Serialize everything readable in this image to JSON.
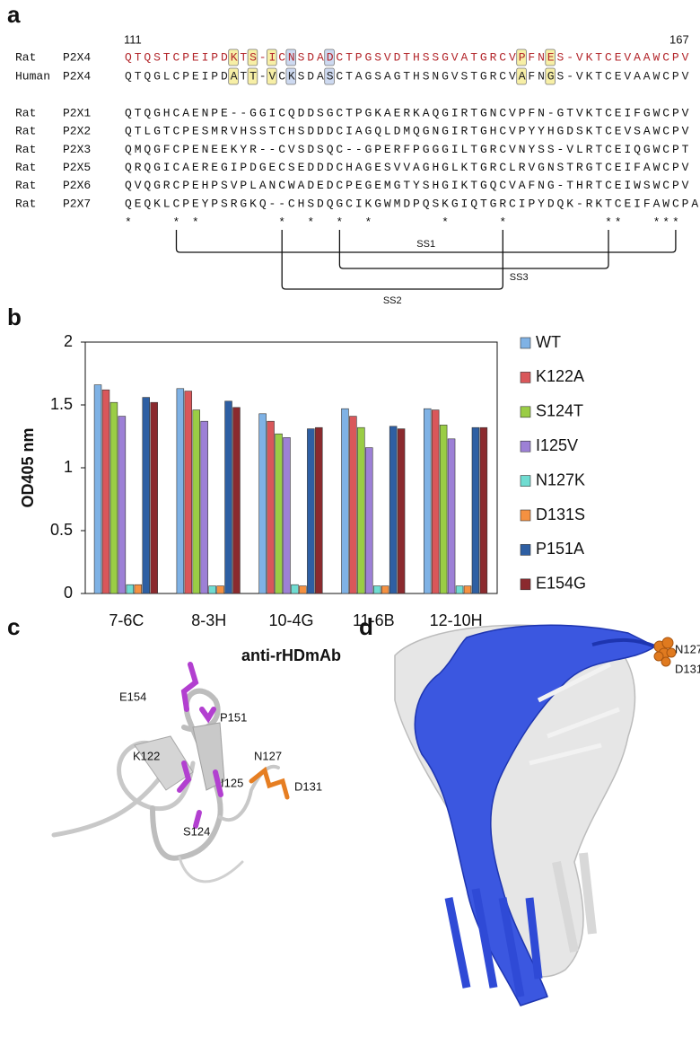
{
  "panel_labels": [
    "a",
    "b",
    "c",
    "d"
  ],
  "alignment": {
    "start": 111,
    "end": 167,
    "rows": [
      {
        "species": "Rat",
        "protein": "P2X4",
        "color": "#b3262b",
        "segments": [
          {
            "text": "QTQSTCPEIPD"
          },
          {
            "text": "K",
            "box": "#f7efa6"
          },
          {
            "text": "T"
          },
          {
            "text": "S",
            "box": "#f7efa6"
          },
          {
            "text": "-"
          },
          {
            "text": "I",
            "box": "#f7efa6"
          },
          {
            "text": "C"
          },
          {
            "text": "N",
            "box": "#cdd9f0"
          },
          {
            "text": "SDA"
          },
          {
            "text": "D",
            "box": "#cdd9f0"
          },
          {
            "text": "CTPGSVDTHSSGVATGRCV"
          },
          {
            "text": "P",
            "box": "#f7efa6"
          },
          {
            "text": "FN"
          },
          {
            "text": "E",
            "box": "#f7efa6"
          },
          {
            "text": "S-VKTCEVAAWCPV"
          }
        ]
      },
      {
        "species": "Human",
        "protein": "P2X4",
        "color": "#222222",
        "segments": [
          {
            "text": "QTQGLCPEIPD"
          },
          {
            "text": "A",
            "box": "#f7efa6"
          },
          {
            "text": "T"
          },
          {
            "text": "T",
            "box": "#f7efa6"
          },
          {
            "text": "-"
          },
          {
            "text": "V",
            "box": "#f7efa6"
          },
          {
            "text": "C"
          },
          {
            "text": "K",
            "box": "#cdd9f0"
          },
          {
            "text": "SDA"
          },
          {
            "text": "S",
            "box": "#cdd9f0"
          },
          {
            "text": "CTAGSAGTHSNGVSTGRCV"
          },
          {
            "text": "A",
            "box": "#f7efa6"
          },
          {
            "text": "FN"
          },
          {
            "text": "G",
            "box": "#f7efa6"
          },
          {
            "text": "S-VKTCEVAAWCPV"
          }
        ]
      }
    ],
    "others": [
      {
        "species": "Rat",
        "protein": "P2X1",
        "sequence": "QTQGHCAENPE--GGICQDDSGCTPGKAERKAQGIRTGNCVPFN-GTVKTCEIFGWCPV"
      },
      {
        "species": "Rat",
        "protein": "P2X2",
        "sequence": "QTLGTCPESMRVHSSTCHSDDDCIAGQLDMQGNGIRTGHCVPYYHGDSKTCEVSAWCPV"
      },
      {
        "species": "Rat",
        "protein": "P2X3",
        "sequence": "QMQGFCPENEEKYR--CVSDSQC--GPERFPGGGILTGRCVNYSS-VLRTCEIQGWCPT"
      },
      {
        "species": "Rat",
        "protein": "P2X5",
        "sequence": "QRQGICAEREGIPDGECSEDDDCHAGESVVAGHGLKTGRCLRVGNSTRGTCEIFAWCPV"
      },
      {
        "species": "Rat",
        "protein": "P2X6",
        "sequence": "QVQGRCPEHPSVPLANCWADEDCPEGEMGTYSHGIKTGQCVAFNG-THRTCEIWSWCPV"
      },
      {
        "species": "Rat",
        "protein": "P2X7",
        "sequence": "QEQKLCPEYPSRGKQ--CHSDQGCIKGWMDPQSKGIQTGRCIPYDQK-RKTCEIFAWCPA"
      }
    ],
    "conservation": "*    * *        *  *  *  *       *     *          **   ***",
    "bonds": [
      "SS1",
      "SS3",
      "SS2"
    ]
  },
  "chart_data": {
    "type": "bar",
    "y_label": "OD405 nm",
    "x_label": "anti-rHDmAb",
    "categories": [
      "7-6C",
      "8-3H",
      "10-4G",
      "11-6B",
      "12-10H"
    ],
    "series": [
      {
        "name": "WT",
        "color": "#7fb2e5",
        "values": [
          1.66,
          1.63,
          1.43,
          1.47,
          1.47
        ]
      },
      {
        "name": "K122A",
        "color": "#d9575a",
        "values": [
          1.62,
          1.61,
          1.37,
          1.41,
          1.46
        ]
      },
      {
        "name": "S124T",
        "color": "#9acd45",
        "values": [
          1.52,
          1.46,
          1.27,
          1.32,
          1.34
        ]
      },
      {
        "name": "I125V",
        "color": "#9d80d6",
        "values": [
          1.41,
          1.37,
          1.24,
          1.16,
          1.23
        ]
      },
      {
        "name": "N127K",
        "color": "#6fdcd1",
        "values": [
          0.07,
          0.06,
          0.07,
          0.06,
          0.06
        ]
      },
      {
        "name": "D131S",
        "color": "#f59141",
        "values": [
          0.07,
          0.06,
          0.06,
          0.06,
          0.06
        ]
      },
      {
        "name": "P151A",
        "color": "#2e5fa3",
        "values": [
          1.56,
          1.53,
          1.31,
          1.33,
          1.32
        ]
      },
      {
        "name": "E154G",
        "color": "#8b2a2e",
        "values": [
          1.52,
          1.48,
          1.32,
          1.31,
          1.32
        ]
      }
    ],
    "ylim": [
      0,
      2
    ],
    "yticks": [
      0,
      0.5,
      1,
      1.5,
      2
    ],
    "grid": false,
    "legend": "right"
  },
  "structure_c": {
    "labels": [
      "E154",
      "P151",
      "K122",
      "N127",
      "I125",
      "D131",
      "S124"
    ]
  },
  "structure_d": {
    "labels": [
      "N127",
      "D131"
    ]
  }
}
